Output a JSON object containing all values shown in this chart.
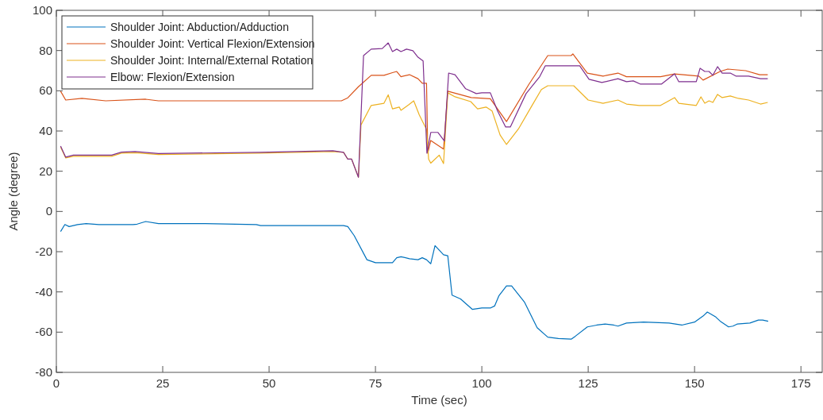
{
  "chart_data": {
    "type": "line",
    "xlabel": "Time (sec)",
    "ylabel": "Angle (degree)",
    "xlim": [
      0,
      180
    ],
    "xticks": [
      0,
      25,
      50,
      75,
      100,
      125,
      150,
      175
    ],
    "ylim": [
      -80,
      100
    ],
    "yticks": [
      -80,
      -60,
      -40,
      -20,
      0,
      20,
      40,
      60,
      80,
      100
    ],
    "grid": false,
    "legend": "top left",
    "marker": "none",
    "line_style": "solid",
    "series": [
      {
        "name": "Shoulder Joint: Abduction/Adduction",
        "color": "#0072bd",
        "x": [
          1,
          2,
          3,
          5,
          7,
          10,
          18,
          19,
          21,
          24,
          35,
          47,
          48,
          60,
          67.5,
          68.5,
          70,
          73,
          75,
          79,
          80,
          81,
          83,
          85,
          86,
          87,
          88,
          89,
          91,
          92,
          93,
          95,
          97.8,
          100,
          102,
          103,
          104,
          105.8,
          107,
          110,
          113,
          115.5,
          118,
          121,
          122,
          124.8,
          127,
          129,
          131,
          132,
          134,
          138,
          144,
          147,
          150,
          152,
          153,
          155,
          156,
          158,
          159,
          160,
          163,
          165,
          166,
          167.3
        ],
        "values": [
          -10,
          -6.5,
          -7.5,
          -6.5,
          -6,
          -6.5,
          -6.5,
          -6.3,
          -5,
          -6,
          -6,
          -6.5,
          -7,
          -7,
          -7,
          -7.5,
          -12,
          -24,
          -25.5,
          -25.5,
          -23,
          -22.5,
          -23.5,
          -24,
          -23,
          -24,
          -26,
          -17,
          -21.5,
          -22,
          -41.6,
          -43.5,
          -48.7,
          -48,
          -48,
          -47,
          -42,
          -37,
          -37,
          -45,
          -57.8,
          -62.5,
          -63.2,
          -63.5,
          -62,
          -57.4,
          -56.5,
          -56,
          -56.5,
          -57,
          -55.5,
          -55,
          -55.5,
          -56.5,
          -55,
          -52,
          -50,
          -52.5,
          -54.5,
          -57.4,
          -57,
          -56,
          -55.5,
          -54,
          -54,
          -54.6
        ]
      },
      {
        "name": "Shoulder Joint: Vertical Flexion/Extension",
        "color": "#d95319",
        "x": [
          1,
          2.2,
          6,
          11.6,
          21,
          24,
          40,
          67,
          68.5,
          71,
          74,
          77,
          79,
          80,
          81,
          83,
          85,
          86,
          87,
          87.3,
          88,
          91,
          92,
          97.5,
          102,
          105.8,
          111,
          115.5,
          121,
          121.4,
          124.8,
          128.5,
          132,
          134,
          142,
          145.3,
          151,
          152,
          156,
          157.8,
          162,
          165.3,
          167.2
        ],
        "values": [
          59.8,
          55.4,
          56.2,
          55,
          55.8,
          55,
          55,
          55,
          56.5,
          62,
          67.7,
          67.7,
          69,
          69.6,
          67,
          68,
          66,
          63.7,
          63.7,
          29,
          35.3,
          31,
          59.8,
          56.6,
          56,
          44.7,
          63,
          77.5,
          77.5,
          78.3,
          68.8,
          67.3,
          68.8,
          67,
          67,
          68.4,
          67.3,
          65.3,
          69.6,
          70.8,
          70,
          68,
          68
        ]
      },
      {
        "name": "Shoulder Joint: Internal/External Rotation",
        "color": "#edb120",
        "x": [
          1,
          2.2,
          4,
          13,
          15.3,
          18.5,
          24,
          47.8,
          65,
          67.5,
          68.5,
          69.4,
          71,
          71.6,
          74,
          77,
          78,
          79,
          80.6,
          81,
          82.8,
          84,
          85.3,
          87,
          87.5,
          88,
          90,
          91,
          92,
          93.7,
          97.4,
          99,
          101,
          102.4,
          104.3,
          105.8,
          108.6,
          111.8,
          114,
          115.5,
          121,
          121.6,
          125,
          128.5,
          132,
          134,
          137,
          142,
          145.3,
          146.3,
          150.4,
          151.5,
          152.4,
          153.4,
          154.3,
          155.4,
          156.5,
          158.4,
          160.3,
          162.7,
          165.5,
          167.2
        ],
        "values": [
          32,
          26.6,
          27.4,
          27.4,
          29,
          29.2,
          28.3,
          29,
          29.8,
          29.4,
          26,
          26,
          17,
          43,
          52.7,
          53.8,
          58,
          51,
          51.9,
          50.3,
          53,
          55,
          48,
          40.8,
          26,
          24,
          28,
          23.8,
          59,
          57,
          54.6,
          51,
          51.9,
          50,
          38,
          33.3,
          41,
          52.7,
          60.6,
          62.5,
          62.5,
          62.5,
          55.4,
          53.8,
          55.4,
          53.4,
          52.7,
          52.7,
          56.6,
          53.8,
          52.7,
          57,
          53.8,
          55,
          54.2,
          58.2,
          56.6,
          57.4,
          56.2,
          55.4,
          53.4,
          54.2
        ]
      },
      {
        "name": "Elbow: Flexion/Extension",
        "color": "#7e2f8e",
        "x": [
          1,
          2.2,
          4,
          13,
          15.3,
          18.5,
          24,
          47.8,
          65,
          67.5,
          68.5,
          69.4,
          71,
          72.2,
          74,
          76.6,
          78,
          79,
          80,
          81,
          82.3,
          83.8,
          85,
          86.2,
          87.1,
          88,
          89.7,
          91.2,
          92.2,
          93.7,
          96.2,
          98.7,
          100,
          102,
          103.7,
          105.6,
          106.7,
          110.4,
          113.6,
          114.9,
          121,
          123,
          125.2,
          128.2,
          132,
          134,
          135.6,
          137.3,
          142.2,
          145.3,
          146.3,
          150.4,
          151.3,
          152.4,
          153.4,
          154.3,
          155.4,
          156.5,
          158.4,
          159.7,
          162.7,
          165.5,
          167.2
        ],
        "values": [
          32.5,
          27,
          28,
          28,
          29.5,
          29.8,
          28.8,
          29.4,
          30.2,
          29.4,
          26,
          26,
          17,
          77.5,
          80.7,
          81,
          83.8,
          79.5,
          80.7,
          79.5,
          80.7,
          79.9,
          76.7,
          74.8,
          29,
          39.3,
          39.3,
          35,
          68.8,
          68,
          61,
          58.6,
          59,
          59,
          50,
          42,
          42,
          58.6,
          67,
          72.4,
          72.4,
          72.4,
          65.7,
          64.1,
          66,
          64.5,
          64.9,
          63.3,
          63.3,
          68.4,
          64.5,
          64.5,
          71.2,
          69.6,
          69.6,
          67.7,
          72,
          68.8,
          68.8,
          67.3,
          67.3,
          66,
          66
        ]
      }
    ]
  }
}
